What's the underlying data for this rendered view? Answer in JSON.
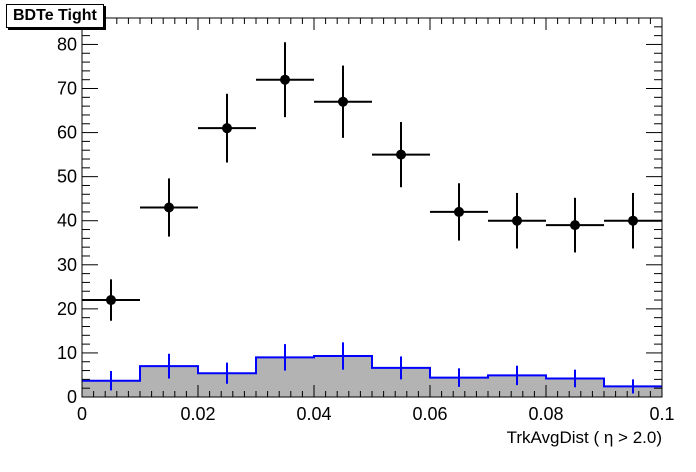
{
  "chart_data": {
    "type": "histogram",
    "title": "BDTe Tight",
    "xlabel": "TrkAvgDist ( η > 2.0)",
    "ylabel": "",
    "xlim": [
      0,
      0.1
    ],
    "ylim": [
      0,
      86
    ],
    "x_ticks": [
      "0",
      "0.02",
      "0.04",
      "0.06",
      "0.08",
      "0.1"
    ],
    "y_ticks": [
      "0",
      "10",
      "20",
      "30",
      "40",
      "50",
      "60",
      "70",
      "80"
    ],
    "bin_edges": [
      0,
      0.01,
      0.02,
      0.03,
      0.04,
      0.05,
      0.06,
      0.07,
      0.08,
      0.09,
      0.1
    ],
    "series": [
      {
        "kind": "points",
        "color": "#000000",
        "x": [
          0.005,
          0.015,
          0.025,
          0.035,
          0.045,
          0.055,
          0.065,
          0.075,
          0.085,
          0.095
        ],
        "y": [
          22,
          43,
          61,
          72,
          67,
          55,
          42,
          40,
          39,
          40
        ],
        "yerr": [
          4.7,
          6.6,
          7.8,
          8.5,
          8.2,
          7.4,
          6.5,
          6.3,
          6.2,
          6.3
        ]
      },
      {
        "kind": "filled-step",
        "fill_color": "#b3b3b3",
        "line_color": "#0000ff",
        "y": [
          3.7,
          7.0,
          5.4,
          9.0,
          9.3,
          6.6,
          4.4,
          4.9,
          4.2,
          2.4
        ],
        "yerr": [
          2.2,
          2.8,
          2.4,
          3.0,
          3.1,
          2.6,
          2.1,
          2.2,
          2.0,
          1.6
        ]
      }
    ]
  }
}
